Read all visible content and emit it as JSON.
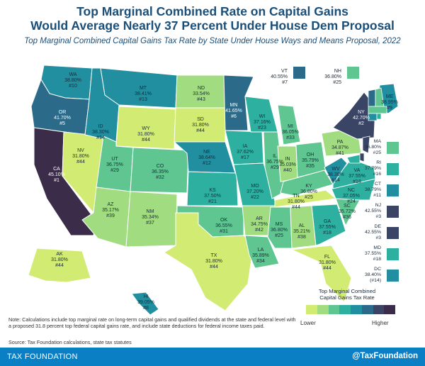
{
  "title": "Top Marginal Combined Rate on Capital Gains\nWould Average Nearly 37 Percent Under House Dem Proposal",
  "title_line1": "Top Marginal Combined Rate on Capital Gains",
  "title_line2": "Would Average Nearly 37 Percent Under House Dem Proposal",
  "subtitle": "Top Marginal Combined Capital Gains Tax Rate by State Under House Ways and Means Proposal, 2022",
  "colors": {
    "c1": "#d2eb73",
    "c2": "#a2dc80",
    "c3": "#5fc691",
    "c4": "#2eb0a0",
    "c5": "#218f9f",
    "c6": "#2c6a89",
    "c7": "#3a4566",
    "c8": "#3b2d49"
  },
  "states": [
    {
      "abbr": "WA",
      "rate": "38.80%",
      "rank": "#10"
    },
    {
      "abbr": "OR",
      "rate": "41.70%",
      "rank": "#5"
    },
    {
      "abbr": "CA",
      "rate": "45.10%",
      "rank": "#1"
    },
    {
      "abbr": "NV",
      "rate": "31.80%",
      "rank": "#44"
    },
    {
      "abbr": "ID",
      "rate": "38.30%",
      "rank": "#14"
    },
    {
      "abbr": "MT",
      "rate": "38.41%",
      "rank": "#13"
    },
    {
      "abbr": "WY",
      "rate": "31.80%",
      "rank": "#44"
    },
    {
      "abbr": "UT",
      "rate": "36.75%",
      "rank": "#29"
    },
    {
      "abbr": "CO",
      "rate": "36.35%",
      "rank": "#32"
    },
    {
      "abbr": "AZ",
      "rate": "35.17%",
      "rank": "#39"
    },
    {
      "abbr": "NM",
      "rate": "35.34%",
      "rank": "#37"
    },
    {
      "abbr": "ND",
      "rate": "33.54%",
      "rank": "#43"
    },
    {
      "abbr": "SD",
      "rate": "31.80%",
      "rank": "#44"
    },
    {
      "abbr": "NE",
      "rate": "38.64%",
      "rank": "#12"
    },
    {
      "abbr": "KS",
      "rate": "37.50%",
      "rank": "#21"
    },
    {
      "abbr": "OK",
      "rate": "36.55%",
      "rank": "#31"
    },
    {
      "abbr": "TX",
      "rate": "31.80%",
      "rank": "#44"
    },
    {
      "abbr": "MN",
      "rate": "41.65%",
      "rank": "#6"
    },
    {
      "abbr": "IA",
      "rate": "37.62%",
      "rank": "#17"
    },
    {
      "abbr": "MO",
      "rate": "37.20%",
      "rank": "#22"
    },
    {
      "abbr": "AR",
      "rate": "34.75%",
      "rank": "#42"
    },
    {
      "abbr": "LA",
      "rate": "35.89%",
      "rank": "#34"
    },
    {
      "abbr": "WI",
      "rate": "37.16%",
      "rank": "#23"
    },
    {
      "abbr": "IL",
      "rate": "36.75%",
      "rank": "#29"
    },
    {
      "abbr": "MI",
      "rate": "36.05%",
      "rank": "#33"
    },
    {
      "abbr": "IN",
      "rate": "35.03%",
      "rank": "#40"
    },
    {
      "abbr": "OH",
      "rate": "35.79%",
      "rank": "#35"
    },
    {
      "abbr": "KY",
      "rate": "36.80%",
      "rank": "#25"
    },
    {
      "abbr": "TN",
      "rate": "31.80%",
      "rank": "#44"
    },
    {
      "abbr": "MS",
      "rate": "36.80%",
      "rank": "#25"
    },
    {
      "abbr": "AL",
      "rate": "35.21%",
      "rank": "#38"
    },
    {
      "abbr": "GA",
      "rate": "37.55%",
      "rank": "#18"
    },
    {
      "abbr": "FL",
      "rate": "31.80%",
      "rank": "#44"
    },
    {
      "abbr": "SC",
      "rate": "35.72%",
      "rank": "#36"
    },
    {
      "abbr": "NC",
      "rate": "37.05%",
      "rank": "#24"
    },
    {
      "abbr": "VA",
      "rate": "37.55%",
      "rank": "#18"
    },
    {
      "abbr": "WV",
      "rate": "38.30%",
      "rank": "#14"
    },
    {
      "abbr": "PA",
      "rate": "34.87%",
      "rank": "#41"
    },
    {
      "abbr": "NY",
      "rate": "42.70%",
      "rank": "#2"
    },
    {
      "abbr": "ME",
      "rate": "38.95%",
      "rank": "#9"
    },
    {
      "abbr": "AK",
      "rate": "31.80%",
      "rank": "#44"
    },
    {
      "abbr": "HI",
      "rate": "39.05%",
      "rank": "#8"
    }
  ],
  "side_states": [
    {
      "abbr": "MA",
      "rate": "36.80%",
      "rank": "#25"
    },
    {
      "abbr": "RI",
      "rate": "37.79%",
      "rank": "#16"
    },
    {
      "abbr": "CT",
      "rate": "38.79%",
      "rank": "#11"
    },
    {
      "abbr": "NJ",
      "rate": "42.55%",
      "rank": "#3"
    },
    {
      "abbr": "DE",
      "rate": "42.55%",
      "rank": "#3"
    },
    {
      "abbr": "MD",
      "rate": "37.55%",
      "rank": "#18"
    },
    {
      "abbr": "DC",
      "rate": "38.40%",
      "rank": "(#14)"
    }
  ],
  "top_callouts": [
    {
      "abbr": "VT",
      "rate": "40.55%",
      "rank": "#7"
    },
    {
      "abbr": "NH",
      "rate": "36.80%",
      "rank": "#25"
    }
  ],
  "legend": {
    "title_line1": "Top Marginal Combined",
    "title_line2": "Capital Gains Tax Rate",
    "low": "Lower",
    "high": "Higher"
  },
  "note": "Note: Calculations include top marginal rate on long-term capital gains and qualified dividends at the state and federal level with a proposed 31.8 percent top federal capital gains rate, and include state deductions for federal income taxes paid.",
  "source": "Source: Tax Foundation calculations, state tax statutes",
  "footer": {
    "brand": "TAX FOUNDATION",
    "handle": "@TaxFoundation"
  }
}
